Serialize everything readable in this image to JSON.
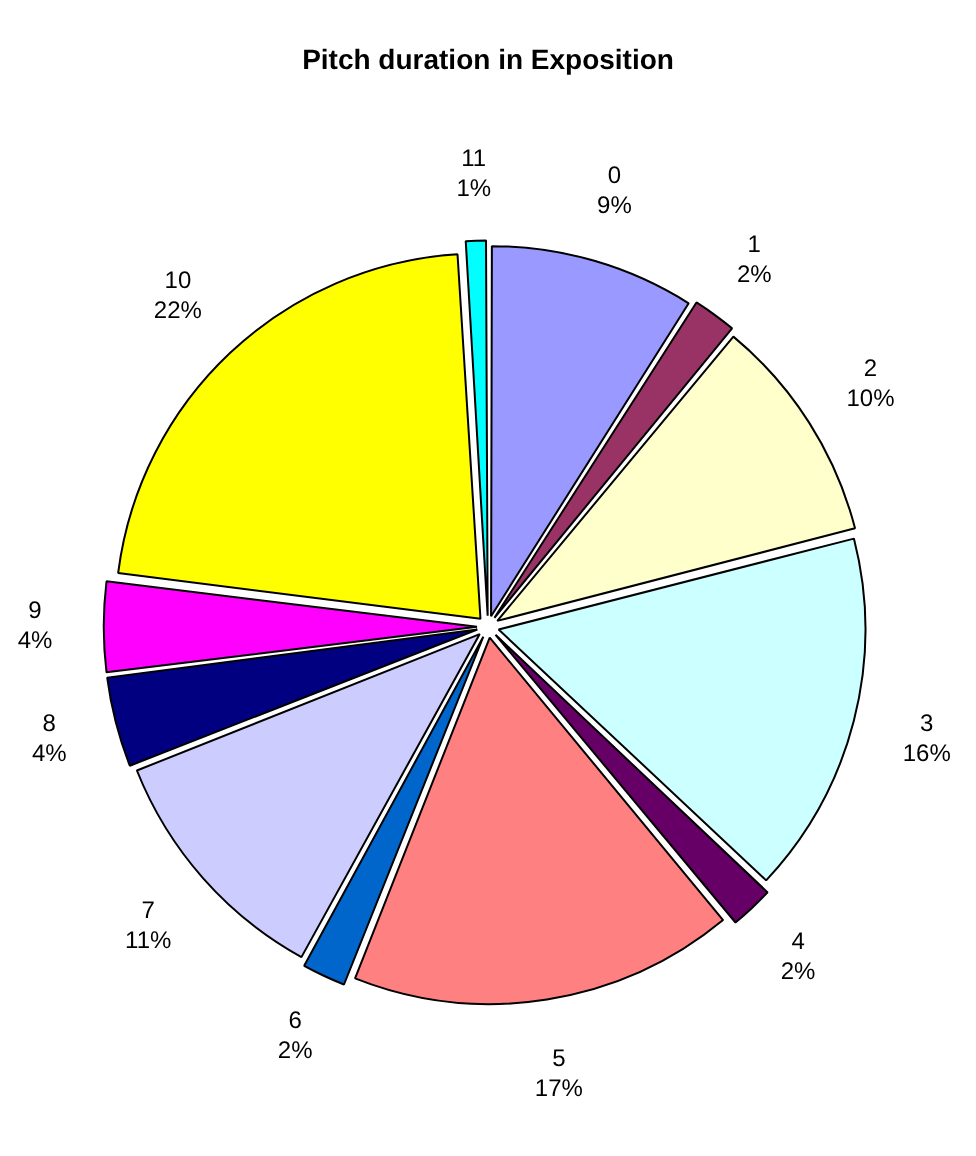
{
  "chart_data": {
    "type": "pie",
    "title": "Pitch duration in Exposition",
    "categories": [
      "0",
      "1",
      "2",
      "3",
      "4",
      "5",
      "6",
      "7",
      "8",
      "9",
      "10",
      "11"
    ],
    "values": [
      9,
      2,
      10,
      16,
      2,
      17,
      2,
      11,
      4,
      4,
      22,
      1
    ],
    "value_labels": [
      "9%",
      "2%",
      "10%",
      "16%",
      "2%",
      "17%",
      "2%",
      "11%",
      "4%",
      "4%",
      "22%",
      "1%"
    ],
    "colors": [
      "#9999ff",
      "#993366",
      "#ffffcc",
      "#ccffff",
      "#660066",
      "#ff8080",
      "#0066cc",
      "#ccccff",
      "#000080",
      "#ff00ff",
      "#ffff00",
      "#00ffff"
    ],
    "legend": false
  }
}
